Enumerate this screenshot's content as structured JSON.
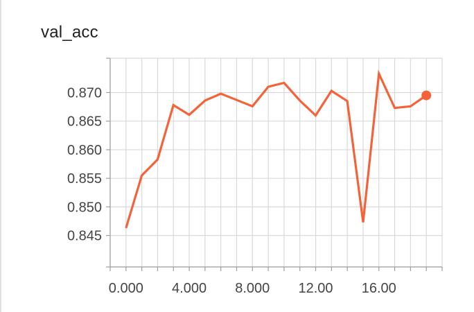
{
  "chart_data": {
    "type": "line",
    "title": "val_acc",
    "xlabel": "",
    "ylabel": "",
    "xlim": [
      -1,
      20
    ],
    "ylim": [
      0.8395,
      0.876
    ],
    "x_ticks": [
      0,
      4,
      8,
      12,
      16
    ],
    "x_tick_labels": [
      "0.000",
      "4.000",
      "8.000",
      "12.00",
      "16.00"
    ],
    "y_ticks": [
      0.845,
      0.85,
      0.855,
      0.86,
      0.865,
      0.87
    ],
    "y_tick_labels": [
      "0.845",
      "0.850",
      "0.855",
      "0.860",
      "0.865",
      "0.870"
    ],
    "grid": true,
    "series": [
      {
        "color": "#f4623a",
        "x": [
          0,
          1,
          2,
          3,
          4,
          5,
          6,
          7,
          8,
          9,
          10,
          11,
          12,
          13,
          14,
          15,
          16,
          17,
          18,
          19
        ],
        "y": [
          0.8463,
          0.8555,
          0.8583,
          0.8678,
          0.8661,
          0.8686,
          0.8698,
          0.8687,
          0.8676,
          0.871,
          0.8717,
          0.8686,
          0.866,
          0.8703,
          0.8685,
          0.8473,
          0.8733,
          0.8673,
          0.8676,
          0.8695
        ],
        "last_point_marker": true
      }
    ]
  }
}
